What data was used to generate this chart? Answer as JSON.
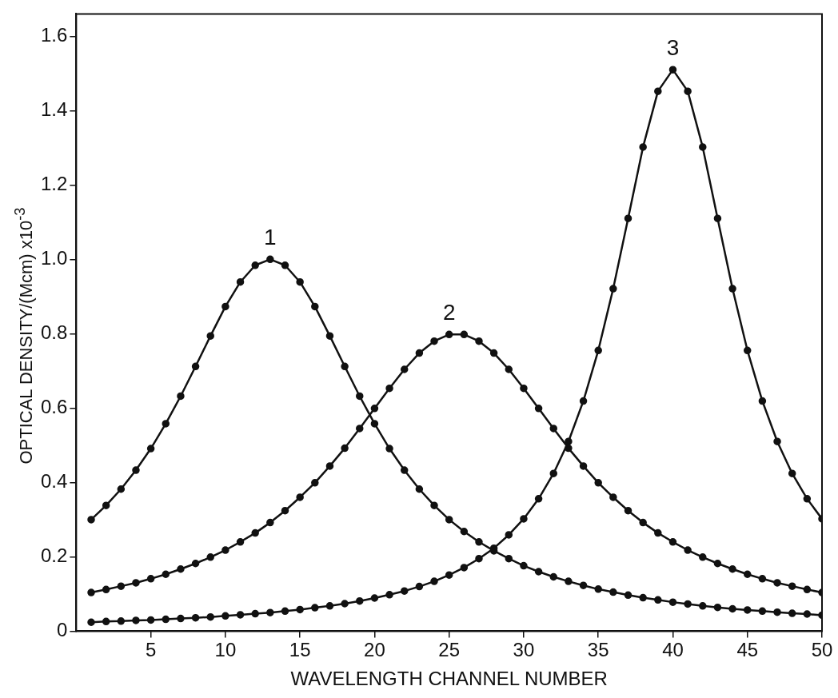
{
  "chart_data": {
    "type": "line",
    "xlabel": "WAVELENGTH CHANNEL NUMBER",
    "ylabel": "OPTICAL DENSITY/(Mcm) x10$^{-3}$",
    "x": [
      1,
      2,
      3,
      4,
      5,
      6,
      7,
      8,
      9,
      10,
      11,
      12,
      13,
      14,
      15,
      16,
      17,
      18,
      19,
      20,
      21,
      22,
      23,
      24,
      25,
      26,
      27,
      28,
      29,
      30,
      31,
      32,
      33,
      34,
      35,
      36,
      37,
      38,
      39,
      40,
      41,
      42,
      43,
      44,
      45,
      46,
      47,
      48,
      49,
      50
    ],
    "series": [
      {
        "name": "1",
        "color": "#111111",
        "values": [
          0.3,
          0.338,
          0.382,
          0.433,
          0.491,
          0.558,
          0.632,
          0.712,
          0.794,
          0.873,
          0.939,
          0.984,
          1.0,
          0.984,
          0.939,
          0.873,
          0.794,
          0.712,
          0.632,
          0.558,
          0.491,
          0.433,
          0.382,
          0.338,
          0.3,
          0.268,
          0.24,
          0.216,
          0.195,
          0.176,
          0.16,
          0.146,
          0.134,
          0.123,
          0.113,
          0.105,
          0.097,
          0.09,
          0.084,
          0.078,
          0.073,
          0.068,
          0.064,
          0.06,
          0.057,
          0.054,
          0.051,
          0.048,
          0.046,
          0.043
        ]
      },
      {
        "name": "2",
        "color": "#111111",
        "values": [
          0.104,
          0.112,
          0.121,
          0.13,
          0.141,
          0.153,
          0.167,
          0.182,
          0.199,
          0.218,
          0.24,
          0.264,
          0.292,
          0.324,
          0.36,
          0.399,
          0.444,
          0.492,
          0.545,
          0.599,
          0.653,
          0.704,
          0.748,
          0.78,
          0.798,
          0.798,
          0.78,
          0.748,
          0.704,
          0.653,
          0.599,
          0.545,
          0.492,
          0.444,
          0.399,
          0.36,
          0.324,
          0.292,
          0.264,
          0.24,
          0.218,
          0.199,
          0.182,
          0.167,
          0.153,
          0.141,
          0.13,
          0.121,
          0.112,
          0.104
        ]
      },
      {
        "name": "3",
        "color": "#111111",
        "values": [
          0.024,
          0.026,
          0.027,
          0.029,
          0.03,
          0.032,
          0.034,
          0.036,
          0.038,
          0.041,
          0.044,
          0.047,
          0.05,
          0.054,
          0.058,
          0.063,
          0.068,
          0.074,
          0.081,
          0.089,
          0.098,
          0.108,
          0.12,
          0.134,
          0.151,
          0.171,
          0.195,
          0.223,
          0.259,
          0.302,
          0.356,
          0.424,
          0.51,
          0.619,
          0.755,
          0.921,
          1.11,
          1.302,
          1.452,
          1.51,
          1.452,
          1.302,
          1.11,
          0.921,
          0.755,
          0.619,
          0.51,
          0.424,
          0.356,
          0.302
        ]
      }
    ],
    "xlim": [
      0,
      50
    ],
    "xticks": [
      5,
      10,
      15,
      20,
      25,
      30,
      35,
      40,
      45,
      50
    ],
    "ylim": [
      0,
      1.66
    ],
    "yticks": [
      {
        "value": 0,
        "label": "0"
      },
      0.2,
      0.4,
      0.6,
      0.8,
      {
        "value": 1,
        "label": "1.0"
      },
      1.2,
      1.4,
      1.6
    ],
    "grid": false,
    "legend": false,
    "marker": "circle",
    "line_style": "solid"
  }
}
